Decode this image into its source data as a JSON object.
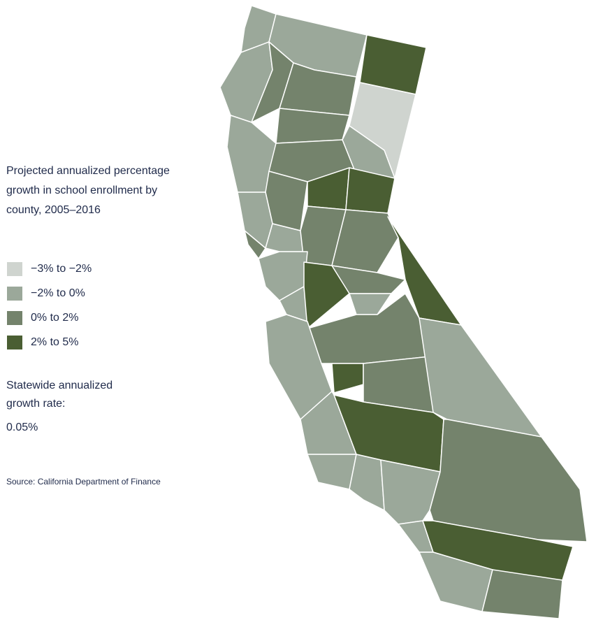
{
  "title_lines": [
    "Projected annualized percentage",
    "growth in school enrollment by",
    "county, 2005–2016"
  ],
  "legend": [
    {
      "label": "−3% to −2%",
      "color": "#cfd4cf"
    },
    {
      "label": "−2% to 0%",
      "color": "#9ba89a"
    },
    {
      "label": "0% to 2%",
      "color": "#74836c"
    },
    {
      "label": "2% to 5%",
      "color": "#4a5e33"
    }
  ],
  "statewide_lines": [
    "Statewide annualized",
    "growth rate:"
  ],
  "statewide_value": "0.05%",
  "source": "Source: California Department of Finance"
}
